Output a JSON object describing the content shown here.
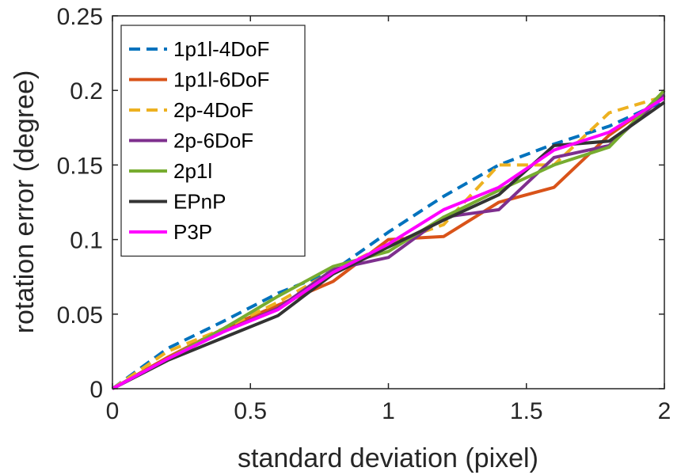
{
  "chart_data": {
    "type": "line",
    "title": "",
    "xlabel": "standard deviation (pixel)",
    "ylabel": "rotation error (degree)",
    "xlim": [
      0,
      2
    ],
    "ylim": [
      0,
      0.25
    ],
    "x_ticks": [
      0,
      0.5,
      1,
      1.5,
      2
    ],
    "x_tick_labels": [
      "0",
      "0.5",
      "1",
      "1.5",
      "2"
    ],
    "y_ticks": [
      0,
      0.05,
      0.1,
      0.15,
      0.2,
      0.25
    ],
    "y_tick_labels": [
      "0",
      "0.05",
      "0.1",
      "0.15",
      "0.2",
      "0.25"
    ],
    "grid": false,
    "legend_position": "top-left",
    "x": [
      0,
      0.2,
      0.4,
      0.6,
      0.8,
      1.0,
      1.2,
      1.4,
      1.6,
      1.8,
      2.0
    ],
    "series": [
      {
        "name": "1p1l-4DoF",
        "color": "#0072BD",
        "dash": "dashed",
        "values": [
          0,
          0.027,
          0.045,
          0.064,
          0.079,
          0.105,
          0.129,
          0.15,
          0.164,
          0.176,
          0.193
        ]
      },
      {
        "name": "1p1l-6DoF",
        "color": "#D95319",
        "dash": "solid",
        "values": [
          0,
          0.021,
          0.04,
          0.056,
          0.072,
          0.1,
          0.102,
          0.125,
          0.135,
          0.17,
          0.196
        ]
      },
      {
        "name": "2p-4DoF",
        "color": "#EDB120",
        "dash": "dashed",
        "values": [
          0,
          0.025,
          0.04,
          0.058,
          0.079,
          0.097,
          0.11,
          0.15,
          0.15,
          0.185,
          0.196
        ]
      },
      {
        "name": "2p-6DoF",
        "color": "#7E2F8E",
        "dash": "solid",
        "values": [
          0,
          0.02,
          0.038,
          0.054,
          0.08,
          0.088,
          0.115,
          0.12,
          0.155,
          0.163,
          0.197
        ]
      },
      {
        "name": "2p1l",
        "color": "#77AC30",
        "dash": "solid",
        "values": [
          0,
          0.02,
          0.04,
          0.062,
          0.082,
          0.092,
          0.115,
          0.133,
          0.15,
          0.162,
          0.2
        ]
      },
      {
        "name": "EPnP",
        "color": "#333333",
        "dash": "solid",
        "values": [
          0,
          0.019,
          0.034,
          0.049,
          0.077,
          0.095,
          0.113,
          0.13,
          0.163,
          0.166,
          0.192
        ]
      },
      {
        "name": "P3P",
        "color": "#FF00FF",
        "dash": "solid",
        "values": [
          0,
          0.02,
          0.038,
          0.053,
          0.078,
          0.097,
          0.12,
          0.135,
          0.16,
          0.172,
          0.195
        ]
      }
    ]
  }
}
